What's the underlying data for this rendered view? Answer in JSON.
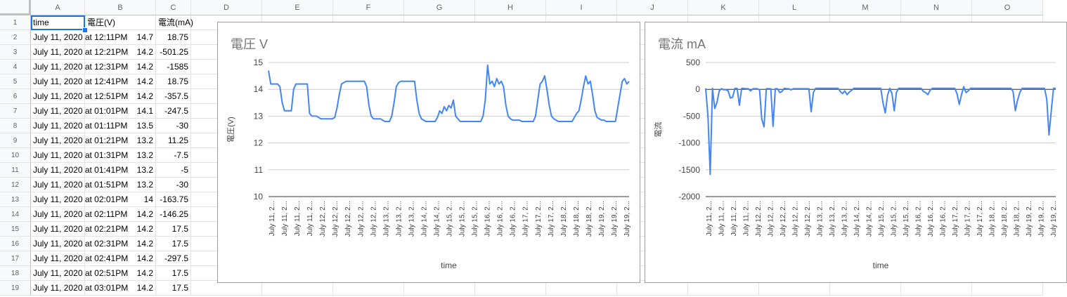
{
  "sheet": {
    "columns": [
      "A",
      "B",
      "C",
      "D",
      "E",
      "F",
      "G",
      "H",
      "I",
      "J",
      "K",
      "L",
      "M",
      "N",
      "O"
    ],
    "header_row": [
      "time",
      "電圧(V)",
      "電流(mA)"
    ],
    "rows": [
      [
        "July 11, 2020 at 12:11PM",
        "14.7",
        "18.75"
      ],
      [
        "July 11, 2020 at 12:21PM",
        "14.2",
        "-501.25"
      ],
      [
        "July 11, 2020 at 12:31PM",
        "14.2",
        "-1585"
      ],
      [
        "July 11, 2020 at 12:41PM",
        "14.2",
        "18.75"
      ],
      [
        "July 11, 2020 at 12:51PM",
        "14.2",
        "-357.5"
      ],
      [
        "July 11, 2020 at 01:01PM",
        "14.1",
        "-247.5"
      ],
      [
        "July 11, 2020 at 01:11PM",
        "13.5",
        "-30"
      ],
      [
        "July 11, 2020 at 01:21PM",
        "13.2",
        "11.25"
      ],
      [
        "July 11, 2020 at 01:31PM",
        "13.2",
        "-7.5"
      ],
      [
        "July 11, 2020 at 01:41PM",
        "13.2",
        "-5"
      ],
      [
        "July 11, 2020 at 01:51PM",
        "13.2",
        "-30"
      ],
      [
        "July 11, 2020 at 02:01PM",
        "14",
        "-163.75"
      ],
      [
        "July 11, 2020 at 02:11PM",
        "14.2",
        "-146.25"
      ],
      [
        "July 11, 2020 at 02:21PM",
        "14.2",
        "17.5"
      ],
      [
        "July 11, 2020 at 02:31PM",
        "14.2",
        "17.5"
      ],
      [
        "July 11, 2020 at 02:41PM",
        "14.2",
        "-297.5"
      ],
      [
        "July 11, 2020 at 02:51PM",
        "14.2",
        "17.5"
      ],
      [
        "July 11, 2020 at 03:01PM",
        "14.2",
        "17.5"
      ]
    ],
    "selected_cell": "A1"
  },
  "chart_data": [
    {
      "type": "line",
      "title": "電圧 V",
      "xlabel": "time",
      "ylabel": "電圧(V)",
      "ylim": [
        10,
        15
      ],
      "yticks": [
        "10",
        "11",
        "12",
        "13",
        "14",
        "15"
      ],
      "xtick_labels": [
        "July 11, 2...",
        "July 11, 2...",
        "July 11, 2...",
        "July 11, 2...",
        "July 12, 2...",
        "July 12, 2...",
        "July 12, 2...",
        "July 12, 2...",
        "July 12, 2...",
        "July 13, 2...",
        "July 13, 2...",
        "July 13, 2...",
        "July 14, 2...",
        "July 14, 2...",
        "July 15, 2...",
        "July 15, 2...",
        "July 15, 2...",
        "July 16, 2...",
        "July 16, 2...",
        "July 16, 2...",
        "July 17, 2...",
        "July 17, 2...",
        "July 17, 2...",
        "July 18, 2...",
        "July 18, 2...",
        "July 18, 2...",
        "July 19, 2...",
        "July 19, 2...",
        "July 19, 2..."
      ],
      "color": "#4285f4",
      "series": [
        {
          "values": [
            14.7,
            14.2,
            14.2,
            14.2,
            14.2,
            14.1,
            13.5,
            13.2,
            13.2,
            13.2,
            13.2,
            14.0,
            14.2,
            14.2,
            14.2,
            14.2,
            14.2,
            14.2,
            13.1,
            13.0,
            13.0,
            13.0,
            12.95,
            12.9,
            12.9,
            12.9,
            12.9,
            12.9,
            12.9,
            12.95,
            13.3,
            13.8,
            14.2,
            14.25,
            14.3,
            14.3,
            14.3,
            14.3,
            14.3,
            14.3,
            14.3,
            14.3,
            14.3,
            14.1,
            13.4,
            13.0,
            12.9,
            12.9,
            12.9,
            12.9,
            12.85,
            12.8,
            12.8,
            12.8,
            13.0,
            13.5,
            14.1,
            14.25,
            14.3,
            14.3,
            14.3,
            14.3,
            14.3,
            14.3,
            14.3,
            13.6,
            13.1,
            12.9,
            12.85,
            12.8,
            12.8,
            12.8,
            12.8,
            12.8,
            12.95,
            13.2,
            13.1,
            13.35,
            13.2,
            13.4,
            13.3,
            13.6,
            13.0,
            12.9,
            12.8,
            12.8,
            12.8,
            12.8,
            12.8,
            12.8,
            12.8,
            12.8,
            12.8,
            12.8,
            13.0,
            13.6,
            14.9,
            14.2,
            14.3,
            14.1,
            14.4,
            14.2,
            14.3,
            14.1,
            13.4,
            13.0,
            12.9,
            12.85,
            12.85,
            12.85,
            12.85,
            12.8,
            12.8,
            12.8,
            12.8,
            12.8,
            12.8,
            13.0,
            13.6,
            14.2,
            14.3,
            14.5,
            14.0,
            13.4,
            13.0,
            12.9,
            12.85,
            12.8,
            12.8,
            12.8,
            12.8,
            12.8,
            12.8,
            12.8,
            12.95,
            13.1,
            13.2,
            13.6,
            14.1,
            14.5,
            14.2,
            14.3,
            13.8,
            13.2,
            12.95,
            12.9,
            12.85,
            12.85,
            12.8,
            12.8,
            12.8,
            12.8,
            12.8,
            13.3,
            13.8,
            14.3,
            14.4,
            14.2,
            14.3
          ]
        }
      ]
    },
    {
      "type": "line",
      "title": "電流 mA",
      "xlabel": "time",
      "ylabel": "電流",
      "ylim": [
        -2000,
        500
      ],
      "yticks": [
        "-2000",
        "-1500",
        "-1000",
        "-500",
        "0",
        "500"
      ],
      "xtick_labels": [
        "July 11, 2...",
        "July 11, 2...",
        "July 11, 2...",
        "July 11, 2...",
        "July 12, 2...",
        "July 12, 2...",
        "July 12, 2...",
        "July 12, 2...",
        "July 12, 2...",
        "July 13, 2...",
        "July 13, 2...",
        "July 13, 2...",
        "July 14, 2...",
        "July 14, 2...",
        "July 15, 2...",
        "July 15, 2...",
        "July 15, 2...",
        "July 16, 2...",
        "July 16, 2...",
        "July 16, 2...",
        "July 17, 2...",
        "July 17, 2...",
        "July 17, 2...",
        "July 18, 2...",
        "July 18, 2...",
        "July 18, 2...",
        "July 19, 2...",
        "July 19, 2...",
        "July 19, 2..."
      ],
      "color": "#4285f4",
      "series": [
        {
          "values": [
            18.75,
            -501.25,
            -1585,
            18.75,
            -357.5,
            -247.5,
            -30,
            11.25,
            -7.5,
            -5,
            -30,
            -163.75,
            -146.25,
            17.5,
            17.5,
            -297.5,
            17.5,
            17.5,
            10,
            10,
            -30,
            10,
            10,
            10,
            -10,
            -560,
            -700,
            10,
            10,
            10,
            -690,
            10,
            10,
            -60,
            -40,
            20,
            10,
            10,
            -10,
            10,
            10,
            10,
            10,
            10,
            10,
            10,
            10,
            -420,
            -60,
            20,
            20,
            20,
            20,
            20,
            20,
            20,
            20,
            20,
            20,
            20,
            -40,
            -80,
            -30,
            -100,
            -50,
            -20,
            20,
            20,
            20,
            20,
            20,
            20,
            20,
            20,
            20,
            20,
            20,
            20,
            20,
            -250,
            -440,
            -120,
            20,
            -80,
            -400,
            -60,
            20,
            20,
            20,
            20,
            20,
            20,
            20,
            20,
            20,
            20,
            20,
            -40,
            -60,
            -100,
            -20,
            20,
            20,
            20,
            20,
            20,
            20,
            20,
            20,
            20,
            20,
            20,
            -80,
            -280,
            -100,
            50,
            -60,
            -30,
            20,
            20,
            20,
            20,
            20,
            20,
            20,
            20,
            20,
            20,
            20,
            20,
            20,
            20,
            20,
            20,
            20,
            20,
            20,
            -40,
            -400,
            -200,
            -60,
            20,
            20,
            20,
            20,
            20,
            20,
            20,
            20,
            20,
            20,
            20,
            -180,
            -850,
            -400,
            20,
            20
          ]
        }
      ]
    }
  ]
}
